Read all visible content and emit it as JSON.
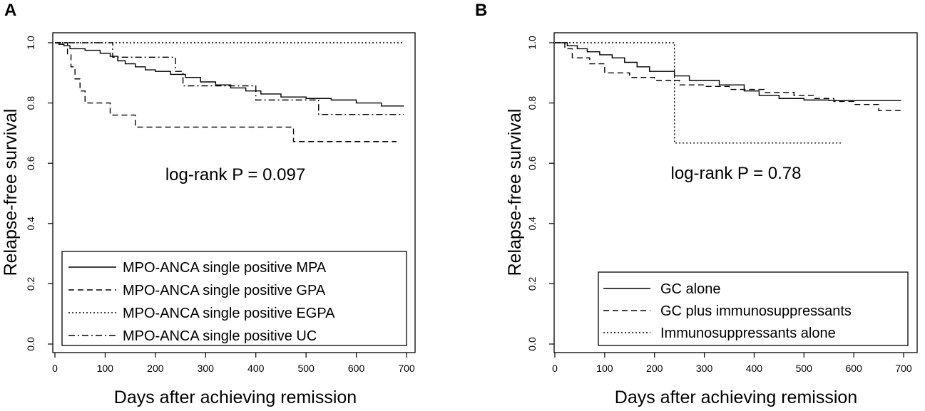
{
  "chart_data": [
    {
      "type": "line",
      "subtype": "kaplan-meier",
      "panel_label": "A",
      "title": "",
      "xlabel": "Days after achieving remission",
      "ylabel": "Relapse-free survival",
      "xlim": [
        0,
        700
      ],
      "ylim": [
        0,
        1.0
      ],
      "x_ticks": [
        "0",
        "100",
        "200",
        "300",
        "400",
        "500",
        "600",
        "700"
      ],
      "y_ticks": [
        "0.0",
        "0.2",
        "0.4",
        "0.6",
        "0.8",
        "1.0"
      ],
      "annotation": "log-rank P = 0.097",
      "legend_position": "bottom-left",
      "series": [
        {
          "name": "MPO-ANCA single positive MPA",
          "line_style": "solid",
          "x": [
            0,
            8,
            18,
            30,
            60,
            90,
            110,
            125,
            140,
            160,
            180,
            200,
            230,
            260,
            290,
            320,
            350,
            380,
            410,
            450,
            500,
            550,
            600,
            650,
            695
          ],
          "y": [
            1.0,
            0.995,
            0.99,
            0.98,
            0.975,
            0.965,
            0.955,
            0.94,
            0.93,
            0.92,
            0.91,
            0.905,
            0.895,
            0.885,
            0.87,
            0.86,
            0.85,
            0.84,
            0.83,
            0.82,
            0.815,
            0.81,
            0.8,
            0.79,
            0.79
          ]
        },
        {
          "name": "MPO-ANCA single positive GPA",
          "line_style": "dashed",
          "x": [
            0,
            25,
            32,
            40,
            50,
            60,
            110,
            160,
            475,
            680
          ],
          "y": [
            1.0,
            0.96,
            0.92,
            0.88,
            0.84,
            0.8,
            0.76,
            0.72,
            0.672,
            0.672
          ]
        },
        {
          "name": "MPO-ANCA single positive EGPA",
          "line_style": "dotted",
          "x": [
            0,
            695
          ],
          "y": [
            1.0,
            1.0
          ]
        },
        {
          "name": "MPO-ANCA single positive UC",
          "line_style": "dashdot",
          "x": [
            0,
            115,
            240,
            255,
            400,
            525,
            695
          ],
          "y": [
            1.0,
            0.952,
            0.905,
            0.857,
            0.81,
            0.762,
            0.762
          ]
        }
      ]
    },
    {
      "type": "line",
      "subtype": "kaplan-meier",
      "panel_label": "B",
      "title": "",
      "xlabel": "Days after achieving remission",
      "ylabel": "Relapse-free survival",
      "xlim": [
        0,
        700
      ],
      "ylim": [
        0,
        1.0
      ],
      "x_ticks": [
        "0",
        "100",
        "200",
        "300",
        "400",
        "500",
        "600",
        "700"
      ],
      "y_ticks": [
        "0.0",
        "0.2",
        "0.4",
        "0.6",
        "0.8",
        "1.0"
      ],
      "annotation": "log-rank P = 0.78",
      "legend_position": "bottom-right",
      "series": [
        {
          "name": "GC alone",
          "line_style": "solid",
          "x": [
            0,
            25,
            45,
            65,
            90,
            115,
            140,
            165,
            190,
            240,
            270,
            330,
            380,
            410,
            450,
            500,
            550,
            600,
            695
          ],
          "y": [
            1.0,
            0.99,
            0.98,
            0.97,
            0.96,
            0.95,
            0.935,
            0.92,
            0.905,
            0.89,
            0.875,
            0.86,
            0.84,
            0.825,
            0.815,
            0.81,
            0.808,
            0.808,
            0.808
          ]
        },
        {
          "name": "GC plus immunosuppressants",
          "line_style": "dashed",
          "x": [
            0,
            20,
            35,
            70,
            100,
            150,
            200,
            250,
            300,
            350,
            420,
            480,
            520,
            560,
            600,
            650,
            695
          ],
          "y": [
            1.0,
            0.98,
            0.95,
            0.93,
            0.9,
            0.885,
            0.875,
            0.86,
            0.855,
            0.845,
            0.835,
            0.825,
            0.815,
            0.805,
            0.795,
            0.775,
            0.775
          ]
        },
        {
          "name": "Immunosuppressants alone",
          "line_style": "dotted",
          "x": [
            0,
            240,
            575
          ],
          "y": [
            1.0,
            0.667,
            0.667
          ]
        }
      ]
    }
  ]
}
